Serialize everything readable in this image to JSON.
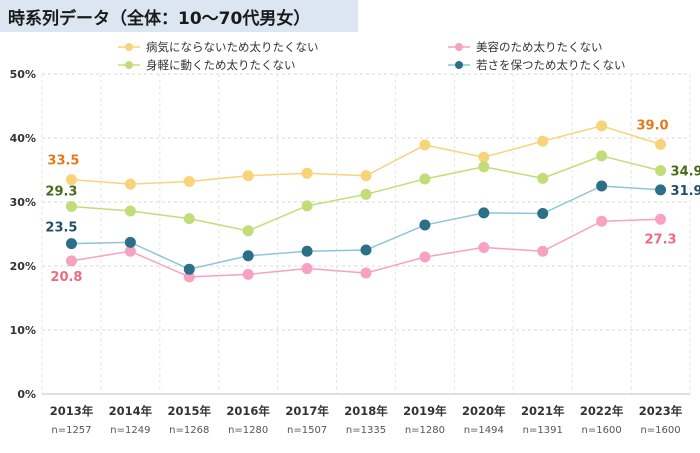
{
  "header": {
    "title": "時系列データ（全体：10～70代男女）"
  },
  "chart_data": {
    "type": "line",
    "title": "時系列データ（全体：10～70代男女）",
    "categories": [
      "2013年",
      "2014年",
      "2015年",
      "2016年",
      "2017年",
      "2018年",
      "2019年",
      "2020年",
      "2021年",
      "2022年",
      "2023年"
    ],
    "sample_sizes": [
      "n=1257",
      "n=1249",
      "n=1268",
      "n=1280",
      "n=1507",
      "n=1335",
      "n=1280",
      "n=1494",
      "n=1391",
      "n=1600",
      "n=1600"
    ],
    "y_ticks": [
      "0%",
      "10%",
      "20%",
      "30%",
      "40%",
      "50%"
    ],
    "ylim": [
      0,
      50
    ],
    "grid": true,
    "legend_position": "top",
    "series": [
      {
        "name": "病気にならないため太りたくない",
        "color": "#f9d37a",
        "label_color": "#e07b1a",
        "values": [
          33.5,
          32.8,
          33.2,
          34.1,
          34.5,
          34.1,
          38.9,
          37.0,
          39.5,
          41.9,
          39.0
        ],
        "labels": {
          "first": "33.5",
          "last": "39.0"
        }
      },
      {
        "name": "美容のため太りたくない",
        "color": "#f6a2c0",
        "label_color": "#ee6b7e",
        "values": [
          20.8,
          22.3,
          18.3,
          18.7,
          19.6,
          18.9,
          21.4,
          22.9,
          22.3,
          27.0,
          27.3
        ],
        "labels": {
          "first": "20.8",
          "last": "27.3"
        }
      },
      {
        "name": "身軽に動くため太りたくない",
        "color": "#c2dd78",
        "label_color": "#4a6a1a",
        "values": [
          29.3,
          28.6,
          27.4,
          25.5,
          29.4,
          31.2,
          33.6,
          35.5,
          33.7,
          37.2,
          34.9
        ],
        "labels": {
          "first": "29.3",
          "last": "34.9"
        }
      },
      {
        "name": "若さを保つため太りたくない",
        "color": "#2b6f89",
        "line_color": "#8ec5d8",
        "label_color": "#1f5066",
        "values": [
          23.5,
          23.7,
          19.5,
          21.6,
          22.3,
          22.5,
          26.4,
          28.3,
          28.2,
          32.5,
          31.9
        ],
        "labels": {
          "first": "23.5",
          "last": "31.9"
        }
      }
    ]
  }
}
